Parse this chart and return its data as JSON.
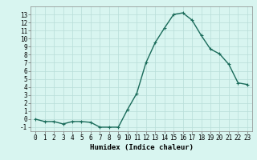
{
  "x": [
    0,
    1,
    2,
    3,
    4,
    5,
    6,
    7,
    8,
    9,
    10,
    11,
    12,
    13,
    14,
    15,
    16,
    17,
    18,
    19,
    20,
    21,
    22,
    23
  ],
  "y": [
    0,
    -0.3,
    -0.3,
    -0.6,
    -0.3,
    -0.3,
    -0.4,
    -1.0,
    -1.0,
    -1.0,
    1.2,
    3.2,
    7.0,
    9.5,
    11.3,
    13.0,
    13.2,
    12.3,
    10.4,
    8.7,
    8.1,
    6.8,
    4.5,
    4.3
  ],
  "line_color": "#1a6b5a",
  "marker": "+",
  "marker_size": 3,
  "marker_edge_width": 0.8,
  "bg_color": "#d8f5f0",
  "grid_color": "#b8ddd8",
  "xlabel": "Humidex (Indice chaleur)",
  "xlim": [
    -0.5,
    23.5
  ],
  "ylim": [
    -1.5,
    14.0
  ],
  "xticks": [
    0,
    1,
    2,
    3,
    4,
    5,
    6,
    7,
    8,
    9,
    10,
    11,
    12,
    13,
    14,
    15,
    16,
    17,
    18,
    19,
    20,
    21,
    22,
    23
  ],
  "yticks": [
    -1,
    0,
    1,
    2,
    3,
    4,
    5,
    6,
    7,
    8,
    9,
    10,
    11,
    12,
    13
  ],
  "tick_fontsize": 5.5,
  "xlabel_fontsize": 6.5,
  "line_width": 1.0
}
